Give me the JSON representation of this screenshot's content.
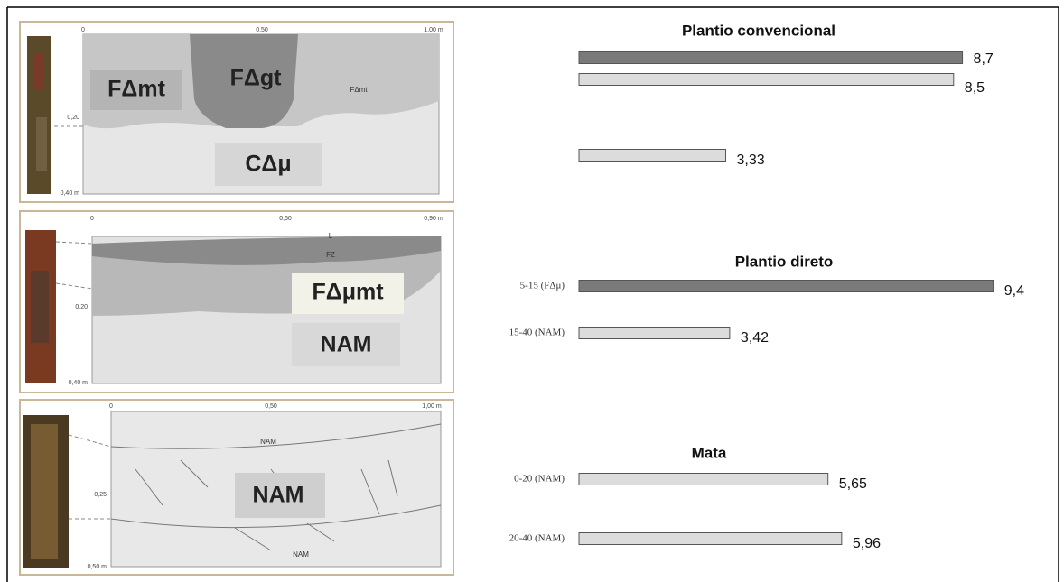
{
  "chart_data": [
    {
      "type": "bar",
      "orientation": "horizontal",
      "title": "Plantio convencional",
      "categories": [
        null,
        null,
        null
      ],
      "values": [
        8.7,
        8.5,
        3.33
      ],
      "value_labels": [
        "8,7",
        "8,5",
        "3,33"
      ],
      "colors": [
        "#7a7a7a",
        "#dcdcdc",
        "#dcdcdc"
      ]
    },
    {
      "type": "bar",
      "orientation": "horizontal",
      "title": "Plantio direto",
      "categories": [
        "5-15 (FΔμ)",
        "15-40 (NAM)"
      ],
      "values": [
        9.4,
        3.42
      ],
      "value_labels": [
        "9,4",
        "3,42"
      ],
      "colors": [
        "#7a7a7a",
        "#dcdcdc"
      ]
    },
    {
      "type": "bar",
      "orientation": "horizontal",
      "title": "Mata",
      "categories": [
        "0-20 (NAM)",
        "20-40 (NAM)"
      ],
      "values": [
        5.65,
        5.96
      ],
      "value_labels": [
        "5,65",
        "5,96"
      ],
      "colors": [
        "#dcdcdc",
        "#dcdcdc"
      ]
    }
  ],
  "profiles": [
    {
      "scale": [
        "0",
        "0,50",
        "1,00 m",
        "0,20",
        "0,40 m"
      ],
      "horizons": [
        "FΔmt",
        "FΔgt",
        "FΔmt",
        "CΔμ"
      ]
    },
    {
      "scale": [
        "0",
        "0,60",
        "0,90 m",
        "0,20",
        "0,40 m"
      ],
      "horizons": [
        "L",
        "FZ",
        "FΔμmt",
        "NAM"
      ]
    },
    {
      "scale": [
        "0",
        "0,50",
        "1,00 m",
        "0,25",
        "0,50 m"
      ],
      "horizons": [
        "NAM",
        "NAM",
        "NAM"
      ]
    }
  ]
}
